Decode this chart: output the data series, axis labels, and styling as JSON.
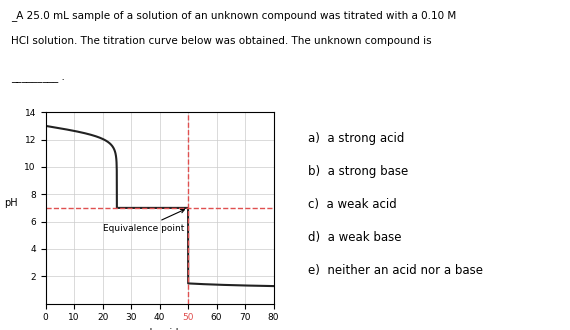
{
  "title_line1": "_A 25.0 mL sample of a solution of an unknown compound was titrated with a 0.10 M",
  "title_line2": "HCl solution. The titration curve below was obtained. The unknown compound is",
  "blank_line": "_________ .",
  "xlabel": "mL acid",
  "ylabel": "pH",
  "xlim": [
    0,
    80
  ],
  "ylim": [
    0,
    14
  ],
  "xticks": [
    0,
    10,
    20,
    30,
    40,
    50,
    60,
    70,
    80
  ],
  "yticks": [
    2,
    4,
    6,
    8,
    10,
    12,
    14
  ],
  "equivalence_x": 50,
  "equivalence_y": 7,
  "dashed_y": 7,
  "dashed_color": "#e05050",
  "curve_color": "#222222",
  "annotation_text": "Equivalence point",
  "choices": [
    "a)  a strong acid",
    "b)  a strong base",
    "c)  a weak acid",
    "d)  a weak base",
    "e)  neither an acid nor a base"
  ],
  "background_color": "#ffffff",
  "grid_color": "#cccccc",
  "fig_width": 5.7,
  "fig_height": 3.3
}
